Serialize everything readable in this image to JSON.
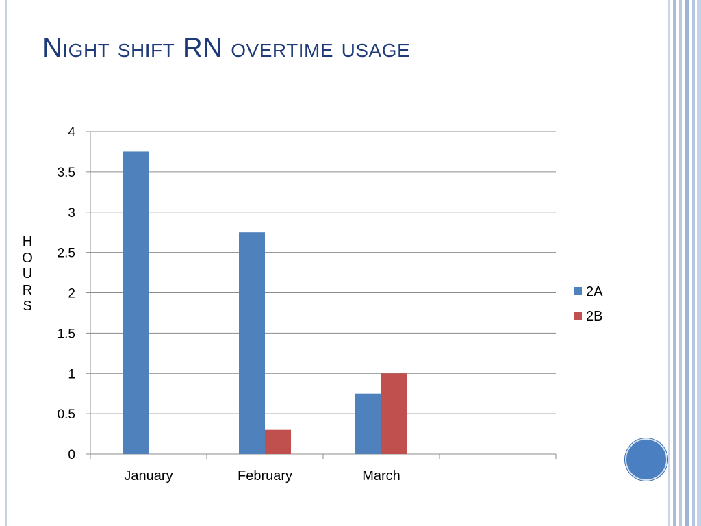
{
  "slide": {
    "title": "Night shift RN overtime usage",
    "accent_color": "#1f3a78",
    "nav_icon": "circle-nav-icon"
  },
  "chart_data": {
    "type": "bar",
    "title": "",
    "xlabel": "",
    "ylabel": "HOURS",
    "categories": [
      "January",
      "February",
      "March",
      ""
    ],
    "series": [
      {
        "name": "2A",
        "color": "#4f81bd",
        "values": [
          3.75,
          2.75,
          0.75,
          null
        ]
      },
      {
        "name": "2B",
        "color": "#c0504d",
        "values": [
          null,
          0.3,
          1.0,
          null
        ]
      }
    ],
    "ylim": [
      0,
      4
    ],
    "yticks": [
      "0",
      "0.5",
      "1",
      "1.5",
      "2",
      "2.5",
      "3",
      "3.5",
      "4"
    ],
    "grid": true,
    "legend": "right"
  }
}
